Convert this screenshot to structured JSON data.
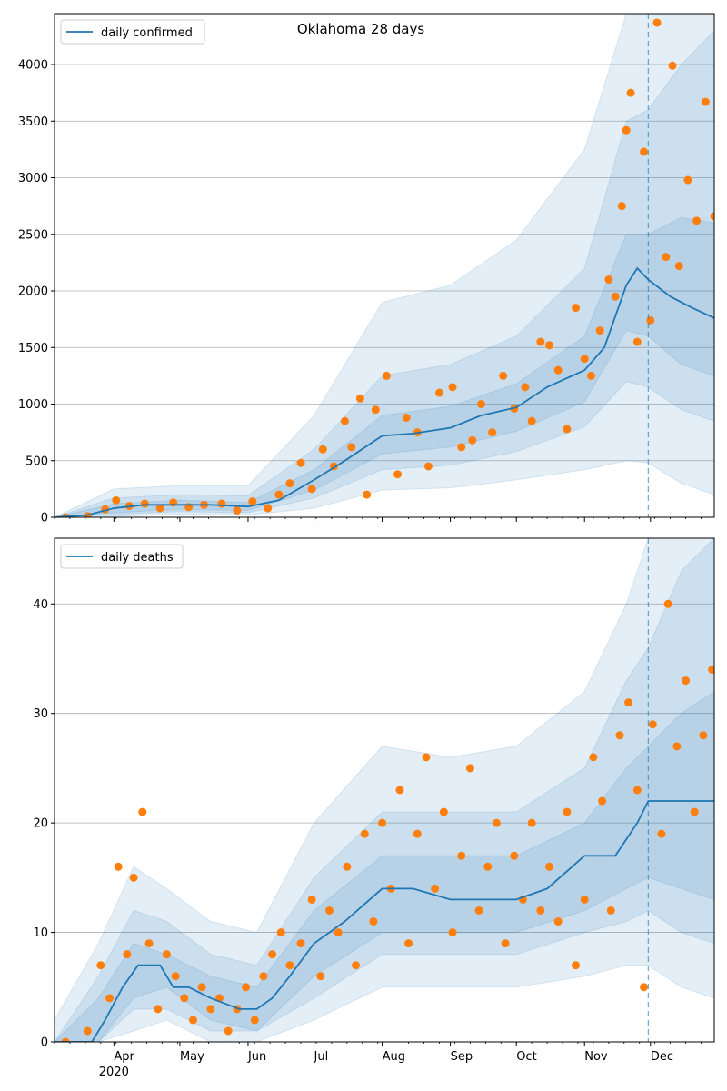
{
  "title": "Oklahoma 28 days",
  "colors": {
    "line": "#1f77b4",
    "points": "#ff7f0e",
    "band": "#1f77b4",
    "grid": "#b0b0b0",
    "vline": "#1f77b4"
  },
  "chart_data": [
    {
      "type": "line",
      "panel": "daily confirmed",
      "legend": [
        "daily confirmed"
      ],
      "legend_placement": "upper left",
      "ylim": [
        0,
        4450
      ],
      "yticks": [
        0,
        500,
        1000,
        1500,
        2000,
        2500,
        3000,
        3500,
        4000
      ],
      "grid": "horizontal",
      "x_axis": "date",
      "xlim": [
        "2020-03-05",
        "2020-12-30"
      ],
      "forecast_start": "2020-11-30",
      "line": {
        "name": "daily confirmed",
        "x": [
          "2020-03-05",
          "2020-03-20",
          "2020-04-01",
          "2020-04-15",
          "2020-05-01",
          "2020-05-15",
          "2020-06-01",
          "2020-06-15",
          "2020-07-01",
          "2020-07-15",
          "2020-08-01",
          "2020-08-15",
          "2020-09-01",
          "2020-09-15",
          "2020-10-01",
          "2020-10-15",
          "2020-11-01",
          "2020-11-10",
          "2020-11-20",
          "2020-11-25",
          "2020-11-30",
          "2020-12-10",
          "2020-12-20",
          "2020-12-30"
        ],
        "y": [
          0,
          20,
          80,
          110,
          110,
          110,
          95,
          150,
          330,
          500,
          720,
          740,
          790,
          900,
          970,
          1150,
          1300,
          1500,
          2050,
          2200,
          2100,
          1950,
          1850,
          1760
        ]
      },
      "bands": [
        {
          "level": "inner",
          "x": [
            "2020-03-05",
            "2020-04-01",
            "2020-05-01",
            "2020-06-01",
            "2020-07-01",
            "2020-08-01",
            "2020-09-01",
            "2020-10-01",
            "2020-11-01",
            "2020-11-20",
            "2020-11-30",
            "2020-12-15",
            "2020-12-30"
          ],
          "lower": [
            0,
            40,
            70,
            60,
            240,
            560,
            620,
            760,
            1020,
            1650,
            1600,
            1350,
            1250
          ],
          "upper": [
            0,
            120,
            150,
            130,
            420,
            900,
            980,
            1180,
            1600,
            2500,
            2500,
            2650,
            2600
          ]
        },
        {
          "level": "middle",
          "x": [
            "2020-03-05",
            "2020-04-01",
            "2020-05-01",
            "2020-06-01",
            "2020-07-01",
            "2020-08-01",
            "2020-09-01",
            "2020-10-01",
            "2020-11-01",
            "2020-11-20",
            "2020-11-30",
            "2020-12-15",
            "2020-12-30"
          ],
          "lower": [
            0,
            25,
            50,
            40,
            170,
            420,
            460,
            580,
            800,
            1200,
            1150,
            950,
            850
          ],
          "upper": [
            0,
            170,
            200,
            190,
            600,
            1250,
            1350,
            1600,
            2200,
            3500,
            3600,
            4000,
            4300
          ]
        },
        {
          "level": "outer",
          "x": [
            "2020-03-05",
            "2020-04-01",
            "2020-05-01",
            "2020-06-01",
            "2020-07-01",
            "2020-08-01",
            "2020-09-01",
            "2020-10-01",
            "2020-11-01",
            "2020-11-20",
            "2020-11-30",
            "2020-12-15",
            "2020-12-30"
          ],
          "lower": [
            0,
            10,
            25,
            20,
            80,
            240,
            260,
            330,
            420,
            500,
            480,
            300,
            200
          ],
          "upper": [
            0,
            250,
            280,
            280,
            900,
            1900,
            2050,
            2450,
            3250,
            4450,
            4450,
            4450,
            4450
          ]
        }
      ],
      "points": {
        "x": [
          "2020-03-10",
          "2020-03-20",
          "2020-03-28",
          "2020-04-02",
          "2020-04-08",
          "2020-04-15",
          "2020-04-22",
          "2020-04-28",
          "2020-05-05",
          "2020-05-12",
          "2020-05-20",
          "2020-05-27",
          "2020-06-03",
          "2020-06-10",
          "2020-06-15",
          "2020-06-20",
          "2020-06-25",
          "2020-06-30",
          "2020-07-05",
          "2020-07-10",
          "2020-07-15",
          "2020-07-18",
          "2020-07-22",
          "2020-07-25",
          "2020-07-29",
          "2020-08-03",
          "2020-08-08",
          "2020-08-12",
          "2020-08-17",
          "2020-08-22",
          "2020-08-27",
          "2020-09-02",
          "2020-09-06",
          "2020-09-11",
          "2020-09-15",
          "2020-09-20",
          "2020-09-25",
          "2020-09-30",
          "2020-10-05",
          "2020-10-08",
          "2020-10-12",
          "2020-10-16",
          "2020-10-20",
          "2020-10-24",
          "2020-10-28",
          "2020-11-01",
          "2020-11-04",
          "2020-11-08",
          "2020-11-12",
          "2020-11-15",
          "2020-11-18",
          "2020-11-20",
          "2020-11-22",
          "2020-11-25",
          "2020-11-28",
          "2020-12-01",
          "2020-12-04",
          "2020-12-08",
          "2020-12-11",
          "2020-12-14",
          "2020-12-18",
          "2020-12-22",
          "2020-12-26",
          "2020-12-30"
        ],
        "y": [
          0,
          10,
          70,
          150,
          100,
          120,
          80,
          130,
          90,
          110,
          120,
          60,
          140,
          80,
          200,
          300,
          480,
          250,
          600,
          450,
          850,
          620,
          1050,
          200,
          950,
          1250,
          380,
          880,
          750,
          450,
          1100,
          1150,
          620,
          680,
          1000,
          750,
          1250,
          960,
          1150,
          850,
          1550,
          1520,
          1300,
          780,
          1850,
          1400,
          1250,
          1650,
          2100,
          1950,
          2750,
          3420,
          3750,
          1550,
          3230,
          1740,
          4370,
          2300,
          3990,
          2220,
          2980,
          2620,
          3670,
          2660
        ]
      }
    },
    {
      "type": "line",
      "panel": "daily deaths",
      "legend": [
        "daily deaths"
      ],
      "legend_placement": "upper left",
      "ylim": [
        0,
        46
      ],
      "yticks": [
        0,
        10,
        20,
        30,
        40
      ],
      "grid": "horizontal",
      "x_axis": "date",
      "xlim": [
        "2020-03-05",
        "2020-12-30"
      ],
      "xtick_labels": [
        "Apr",
        "May",
        "Jun",
        "Jul",
        "Aug",
        "Sep",
        "Oct",
        "Nov",
        "Dec"
      ],
      "xtick_dates": [
        "2020-04-01",
        "2020-05-01",
        "2020-06-01",
        "2020-07-01",
        "2020-08-01",
        "2020-09-01",
        "2020-10-01",
        "2020-11-01",
        "2020-12-01"
      ],
      "x_year_label": "2020",
      "forecast_start": "2020-11-30",
      "line": {
        "name": "daily deaths",
        "x": [
          "2020-03-05",
          "2020-03-22",
          "2020-03-28",
          "2020-04-05",
          "2020-04-12",
          "2020-04-22",
          "2020-04-28",
          "2020-05-05",
          "2020-05-15",
          "2020-05-28",
          "2020-06-05",
          "2020-06-12",
          "2020-06-20",
          "2020-07-01",
          "2020-07-15",
          "2020-08-01",
          "2020-08-15",
          "2020-09-01",
          "2020-09-15",
          "2020-10-01",
          "2020-10-15",
          "2020-11-01",
          "2020-11-15",
          "2020-11-25",
          "2020-11-30",
          "2020-12-10",
          "2020-12-20",
          "2020-12-30"
        ],
        "y": [
          0,
          0,
          2,
          5,
          7,
          7,
          5,
          5,
          4,
          3,
          3,
          4,
          6,
          9,
          11,
          14,
          14,
          13,
          13,
          13,
          14,
          17,
          17,
          20,
          22,
          22,
          22,
          22
        ]
      },
      "bands": [
        {
          "level": "inner",
          "x": [
            "2020-03-05",
            "2020-03-25",
            "2020-04-10",
            "2020-04-25",
            "2020-05-15",
            "2020-06-05",
            "2020-07-01",
            "2020-08-01",
            "2020-09-01",
            "2020-10-01",
            "2020-11-01",
            "2020-11-20",
            "2020-11-30",
            "2020-12-15",
            "2020-12-30"
          ],
          "lower": [
            0,
            0,
            4,
            5,
            2,
            1,
            6,
            10,
            10,
            10,
            12,
            14,
            15,
            14,
            13
          ],
          "upper": [
            0,
            4,
            9,
            8,
            6,
            5,
            12,
            17,
            17,
            17,
            20,
            25,
            27,
            30,
            32
          ]
        },
        {
          "level": "middle",
          "x": [
            "2020-03-05",
            "2020-03-25",
            "2020-04-10",
            "2020-04-25",
            "2020-05-15",
            "2020-06-05",
            "2020-07-01",
            "2020-08-01",
            "2020-09-01",
            "2020-10-01",
            "2020-11-01",
            "2020-11-20",
            "2020-11-30",
            "2020-12-15",
            "2020-12-30"
          ],
          "lower": [
            0,
            0,
            3,
            3,
            1,
            1,
            4,
            8,
            8,
            8,
            10,
            11,
            12,
            10,
            9
          ],
          "upper": [
            0,
            6,
            12,
            11,
            8,
            7,
            15,
            21,
            21,
            21,
            25,
            33,
            36,
            43,
            46
          ]
        },
        {
          "level": "outer",
          "x": [
            "2020-03-05",
            "2020-03-25",
            "2020-04-10",
            "2020-04-25",
            "2020-05-15",
            "2020-06-05",
            "2020-07-01",
            "2020-08-01",
            "2020-09-01",
            "2020-10-01",
            "2020-11-01",
            "2020-11-20",
            "2020-11-30",
            "2020-12-15",
            "2020-12-30"
          ],
          "lower": [
            0,
            0,
            1,
            2,
            0,
            0,
            2,
            5,
            5,
            5,
            6,
            7,
            7,
            5,
            4
          ],
          "upper": [
            2,
            9,
            16,
            14,
            11,
            10,
            20,
            27,
            26,
            27,
            32,
            40,
            46,
            46,
            46
          ]
        }
      ],
      "points": {
        "x": [
          "2020-03-10",
          "2020-03-20",
          "2020-03-26",
          "2020-03-30",
          "2020-04-03",
          "2020-04-07",
          "2020-04-10",
          "2020-04-14",
          "2020-04-17",
          "2020-04-21",
          "2020-04-25",
          "2020-04-29",
          "2020-05-03",
          "2020-05-07",
          "2020-05-11",
          "2020-05-15",
          "2020-05-19",
          "2020-05-23",
          "2020-05-27",
          "2020-05-31",
          "2020-06-04",
          "2020-06-08",
          "2020-06-12",
          "2020-06-16",
          "2020-06-20",
          "2020-06-25",
          "2020-06-30",
          "2020-07-04",
          "2020-07-08",
          "2020-07-12",
          "2020-07-16",
          "2020-07-20",
          "2020-07-24",
          "2020-07-28",
          "2020-08-01",
          "2020-08-05",
          "2020-08-09",
          "2020-08-13",
          "2020-08-17",
          "2020-08-21",
          "2020-08-25",
          "2020-08-29",
          "2020-09-02",
          "2020-09-06",
          "2020-09-10",
          "2020-09-14",
          "2020-09-18",
          "2020-09-22",
          "2020-09-26",
          "2020-09-30",
          "2020-10-04",
          "2020-10-08",
          "2020-10-12",
          "2020-10-16",
          "2020-10-20",
          "2020-10-24",
          "2020-10-28",
          "2020-11-01",
          "2020-11-05",
          "2020-11-09",
          "2020-11-13",
          "2020-11-17",
          "2020-11-21",
          "2020-11-25",
          "2020-11-28",
          "2020-12-02",
          "2020-12-06",
          "2020-12-09",
          "2020-12-13",
          "2020-12-17",
          "2020-12-21",
          "2020-12-25",
          "2020-12-29"
        ],
        "y": [
          0,
          1,
          7,
          4,
          16,
          8,
          15,
          21,
          9,
          3,
          8,
          6,
          4,
          2,
          5,
          3,
          4,
          1,
          3,
          5,
          2,
          6,
          8,
          10,
          7,
          9,
          13,
          6,
          12,
          10,
          16,
          7,
          19,
          11,
          20,
          14,
          23,
          9,
          19,
          26,
          14,
          21,
          10,
          17,
          25,
          12,
          16,
          20,
          9,
          17,
          13,
          20,
          12,
          16,
          11,
          21,
          7,
          13,
          26,
          22,
          12,
          28,
          31,
          23,
          5,
          29,
          19,
          40,
          27,
          33,
          21,
          28,
          34
        ]
      }
    }
  ]
}
